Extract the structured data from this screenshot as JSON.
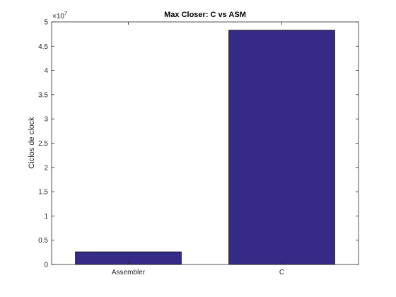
{
  "chart_data": {
    "type": "bar",
    "title": "Max Closer: C vs ASM",
    "xlabel": "",
    "ylabel": "Ciclos de clock",
    "categories": [
      "Assembler",
      "C"
    ],
    "values": [
      2600000,
      48300000
    ],
    "ylim": [
      0,
      50000000
    ],
    "yticks": [
      0,
      0.5,
      1,
      1.5,
      2,
      2.5,
      3,
      3.5,
      4,
      4.5,
      5
    ],
    "ytick_labels": [
      "0",
      "0.5",
      "1",
      "1.5",
      "2",
      "2.5",
      "3",
      "3.5",
      "4",
      "4.5",
      "5"
    ],
    "y_exponent_base": "×10",
    "y_exponent_power": "7",
    "grid": false,
    "bar_color": "#352A87"
  }
}
